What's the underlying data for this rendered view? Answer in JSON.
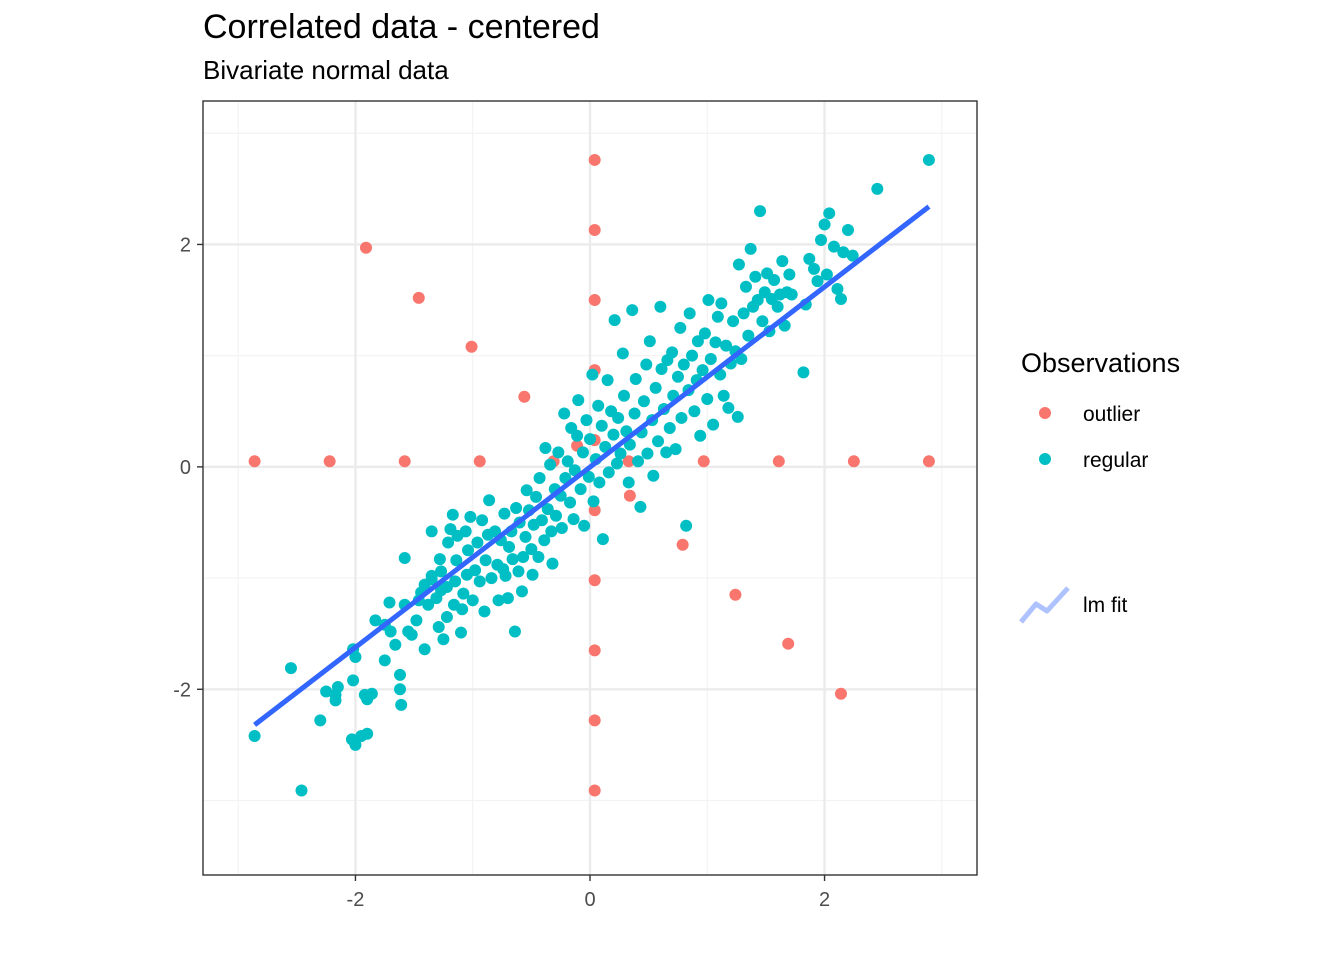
{
  "colors": {
    "outlier": "#F8766D",
    "regular": "#00BFC4",
    "fit": "#3366FF",
    "grid_major": "#EBEBEB",
    "grid_minor": "#F3F3F3",
    "panel_border": "#333333",
    "axis_text": "#4D4D4D"
  },
  "chart_data": {
    "type": "scatter",
    "title": "Correlated data - centered",
    "subtitle": "Bivariate normal data",
    "xlabel": "",
    "ylabel": "",
    "xlim": [
      -3.3,
      3.3
    ],
    "ylim": [
      -3.67,
      3.29
    ],
    "x_ticks": [
      -2,
      0,
      2
    ],
    "x_tick_labels": [
      "-2",
      "0",
      "2"
    ],
    "y_ticks": [
      -2,
      0,
      2
    ],
    "y_tick_labels": [
      "-2",
      "0",
      "2"
    ],
    "grid": true,
    "legend_placement": "right",
    "legend": {
      "title": "Observations",
      "items": [
        {
          "key": "outlier",
          "label": "outlier"
        },
        {
          "key": "regular",
          "label": "regular"
        }
      ],
      "fit_label": "lm fit"
    },
    "series": [
      {
        "name": "outlier",
        "color_key": "outlier",
        "points": [
          [
            0.04,
            2.76
          ],
          [
            0.04,
            2.13
          ],
          [
            0.04,
            1.5
          ],
          [
            0.04,
            0.87
          ],
          [
            0.04,
            0.24
          ],
          [
            0.04,
            -0.39
          ],
          [
            0.04,
            -1.02
          ],
          [
            0.04,
            -1.65
          ],
          [
            0.04,
            -2.28
          ],
          [
            0.04,
            -2.91
          ],
          [
            -2.86,
            0.05
          ],
          [
            -2.22,
            0.05
          ],
          [
            -1.58,
            0.05
          ],
          [
            -0.94,
            0.05
          ],
          [
            -0.31,
            0.05
          ],
          [
            0.33,
            0.05
          ],
          [
            0.97,
            0.05
          ],
          [
            1.61,
            0.05
          ],
          [
            2.25,
            0.05
          ],
          [
            2.89,
            0.05
          ],
          [
            -1.91,
            1.97
          ],
          [
            -1.46,
            1.52
          ],
          [
            -1.01,
            1.08
          ],
          [
            -0.56,
            0.63
          ],
          [
            -0.11,
            0.19
          ],
          [
            0.34,
            -0.26
          ],
          [
            0.79,
            -0.7
          ],
          [
            1.24,
            -1.15
          ],
          [
            1.69,
            -1.59
          ],
          [
            2.14,
            -2.04
          ]
        ]
      },
      {
        "name": "regular",
        "color_key": "regular",
        "points": [
          [
            -2.86,
            -2.42
          ],
          [
            -2.55,
            -1.81
          ],
          [
            -2.46,
            -2.91
          ],
          [
            -2.3,
            -2.28
          ],
          [
            -2.25,
            -2.02
          ],
          [
            -2.17,
            -2.05
          ],
          [
            -2.15,
            -1.98
          ],
          [
            -2.17,
            -2.1
          ],
          [
            -2.02,
            -1.64
          ],
          [
            -2.0,
            -1.71
          ],
          [
            -2.02,
            -1.92
          ],
          [
            -2.03,
            -2.45
          ],
          [
            -2.0,
            -2.5
          ],
          [
            -1.95,
            -2.42
          ],
          [
            -1.9,
            -2.4
          ],
          [
            -1.92,
            -2.05
          ],
          [
            -1.9,
            -2.09
          ],
          [
            -1.86,
            -2.04
          ],
          [
            -1.83,
            -1.38
          ],
          [
            -1.75,
            -1.74
          ],
          [
            -1.75,
            -1.42
          ],
          [
            -1.71,
            -1.22
          ],
          [
            -1.7,
            -1.48
          ],
          [
            -1.66,
            -1.6
          ],
          [
            -1.62,
            -1.87
          ],
          [
            -1.61,
            -2.14
          ],
          [
            -1.62,
            -2.0
          ],
          [
            -1.58,
            -1.24
          ],
          [
            -1.58,
            -0.82
          ],
          [
            -1.55,
            -1.48
          ],
          [
            -1.52,
            -1.51
          ],
          [
            -1.48,
            -1.38
          ],
          [
            -1.46,
            -1.2
          ],
          [
            -1.44,
            -1.13
          ],
          [
            -1.41,
            -1.06
          ],
          [
            -1.41,
            -1.64
          ],
          [
            -1.38,
            -1.24
          ],
          [
            -1.35,
            -1.01
          ],
          [
            -1.35,
            -0.58
          ],
          [
            -1.35,
            -0.98
          ],
          [
            -1.31,
            -1.18
          ],
          [
            -1.29,
            -1.44
          ],
          [
            -1.27,
            -1.11
          ],
          [
            -1.28,
            -0.83
          ],
          [
            -1.27,
            -0.94
          ],
          [
            -1.25,
            -1.55
          ],
          [
            -1.22,
            -1.35
          ],
          [
            -1.22,
            -1.08
          ],
          [
            -1.21,
            -0.68
          ],
          [
            -1.19,
            -0.56
          ],
          [
            -1.17,
            -0.43
          ],
          [
            -1.16,
            -1.24
          ],
          [
            -1.15,
            -1.03
          ],
          [
            -1.14,
            -0.84
          ],
          [
            -1.13,
            -0.62
          ],
          [
            -1.1,
            -1.49
          ],
          [
            -1.09,
            -1.28
          ],
          [
            -1.08,
            -1.14
          ],
          [
            -1.06,
            -0.58
          ],
          [
            -1.05,
            -0.97
          ],
          [
            -1.04,
            -0.75
          ],
          [
            -1.02,
            -0.45
          ],
          [
            -1.0,
            -1.2
          ],
          [
            -0.98,
            -0.93
          ],
          [
            -0.96,
            -0.68
          ],
          [
            -0.94,
            -1.03
          ],
          [
            -0.92,
            -0.48
          ],
          [
            -0.9,
            -1.3
          ],
          [
            -0.89,
            -0.84
          ],
          [
            -0.87,
            -0.61
          ],
          [
            -0.86,
            -0.3
          ],
          [
            -0.84,
            -1.0
          ],
          [
            -0.81,
            -0.58
          ],
          [
            -0.79,
            -0.88
          ],
          [
            -0.78,
            -1.2
          ],
          [
            -0.76,
            -0.66
          ],
          [
            -0.74,
            -0.92
          ],
          [
            -0.73,
            -0.42
          ],
          [
            -0.72,
            -0.98
          ],
          [
            -0.7,
            -1.18
          ],
          [
            -0.69,
            -0.72
          ],
          [
            -0.67,
            -0.58
          ],
          [
            -0.66,
            -0.83
          ],
          [
            -0.64,
            -1.48
          ],
          [
            -0.63,
            -0.37
          ],
          [
            -0.61,
            -0.94
          ],
          [
            -0.6,
            -0.5
          ],
          [
            -0.58,
            -1.12
          ],
          [
            -0.57,
            -0.81
          ],
          [
            -0.55,
            -0.63
          ],
          [
            -0.54,
            -0.21
          ],
          [
            -0.52,
            -0.39
          ],
          [
            -0.5,
            -0.74
          ],
          [
            -0.49,
            -0.97
          ],
          [
            -0.48,
            -0.52
          ],
          [
            -0.46,
            -0.27
          ],
          [
            -0.44,
            -0.81
          ],
          [
            -0.43,
            -0.1
          ],
          [
            -0.41,
            -0.48
          ],
          [
            -0.39,
            -0.66
          ],
          [
            -0.38,
            0.17
          ],
          [
            -0.36,
            -0.38
          ],
          [
            -0.34,
            0.02
          ],
          [
            -0.33,
            -0.58
          ],
          [
            -0.32,
            -0.87
          ],
          [
            -0.3,
            -0.2
          ],
          [
            -0.29,
            -0.44
          ],
          [
            -0.27,
            0.13
          ],
          [
            -0.25,
            -0.26
          ],
          [
            -0.24,
            -0.55
          ],
          [
            -0.22,
            0.48
          ],
          [
            -0.21,
            -0.1
          ],
          [
            -0.19,
            0.05
          ],
          [
            -0.17,
            -0.32
          ],
          [
            -0.16,
            0.35
          ],
          [
            -0.14,
            -0.47
          ],
          [
            -0.13,
            -0.03
          ],
          [
            -0.11,
            0.28
          ],
          [
            -0.1,
            0.6
          ],
          [
            -0.08,
            -0.2
          ],
          [
            -0.06,
            0.13
          ],
          [
            -0.05,
            -0.53
          ],
          [
            -0.03,
            0.42
          ],
          [
            -0.01,
            -0.09
          ],
          [
            0.0,
            0.25
          ],
          [
            0.02,
            0.83
          ],
          [
            0.03,
            -0.31
          ],
          [
            0.05,
            0.07
          ],
          [
            0.07,
            0.55
          ],
          [
            0.08,
            -0.14
          ],
          [
            0.1,
            0.37
          ],
          [
            0.11,
            -0.65
          ],
          [
            0.13,
            0.18
          ],
          [
            0.15,
            0.78
          ],
          [
            0.16,
            -0.05
          ],
          [
            0.18,
            0.5
          ],
          [
            0.2,
            0.29
          ],
          [
            0.21,
            1.32
          ],
          [
            0.23,
            0.03
          ],
          [
            0.24,
            0.44
          ],
          [
            0.26,
            0.12
          ],
          [
            0.28,
            1.02
          ],
          [
            0.29,
            0.64
          ],
          [
            0.31,
            0.32
          ],
          [
            0.33,
            -0.14
          ],
          [
            0.34,
            0.2
          ],
          [
            0.36,
            1.41
          ],
          [
            0.38,
            0.48
          ],
          [
            0.39,
            0.79
          ],
          [
            0.41,
            0.05
          ],
          [
            0.43,
            -0.36
          ],
          [
            0.44,
            0.31
          ],
          [
            0.46,
            0.59
          ],
          [
            0.48,
            0.92
          ],
          [
            0.49,
            0.12
          ],
          [
            0.51,
            1.13
          ],
          [
            0.53,
            0.42
          ],
          [
            0.54,
            -0.08
          ],
          [
            0.56,
            0.71
          ],
          [
            0.58,
            0.23
          ],
          [
            0.6,
            1.44
          ],
          [
            0.61,
            0.88
          ],
          [
            0.63,
            0.52
          ],
          [
            0.65,
            0.13
          ],
          [
            0.66,
            0.96
          ],
          [
            0.68,
            0.35
          ],
          [
            0.7,
            1.03
          ],
          [
            0.71,
            0.64
          ],
          [
            0.73,
            0.16
          ],
          [
            0.75,
            0.81
          ],
          [
            0.77,
            1.25
          ],
          [
            0.78,
            0.44
          ],
          [
            0.8,
            0.92
          ],
          [
            0.82,
            -0.53
          ],
          [
            0.84,
            0.69
          ],
          [
            0.85,
            1.38
          ],
          [
            0.87,
            1.0
          ],
          [
            0.89,
            0.5
          ],
          [
            0.91,
            0.78
          ],
          [
            0.92,
            1.13
          ],
          [
            0.94,
            0.28
          ],
          [
            0.96,
            0.87
          ],
          [
            0.98,
            1.2
          ],
          [
            1.0,
            0.61
          ],
          [
            1.01,
            1.5
          ],
          [
            1.03,
            0.97
          ],
          [
            1.05,
            0.38
          ],
          [
            1.07,
            1.12
          ],
          [
            1.09,
            1.35
          ],
          [
            1.11,
            0.83
          ],
          [
            1.12,
            1.47
          ],
          [
            1.14,
            0.64
          ],
          [
            1.16,
            1.09
          ],
          [
            1.18,
            0.53
          ],
          [
            1.2,
            0.93
          ],
          [
            1.22,
            1.31
          ],
          [
            1.24,
            1.04
          ],
          [
            1.26,
            0.45
          ],
          [
            1.27,
            1.82
          ],
          [
            1.29,
            0.97
          ],
          [
            1.31,
            1.38
          ],
          [
            1.33,
            1.62
          ],
          [
            1.35,
            1.18
          ],
          [
            1.37,
            1.96
          ],
          [
            1.39,
            1.44
          ],
          [
            1.41,
            1.71
          ],
          [
            1.43,
            1.5
          ],
          [
            1.45,
            2.3
          ],
          [
            1.47,
            1.31
          ],
          [
            1.49,
            1.57
          ],
          [
            1.51,
            1.74
          ],
          [
            1.53,
            1.22
          ],
          [
            1.55,
            1.51
          ],
          [
            1.57,
            1.68
          ],
          [
            1.6,
            1.44
          ],
          [
            1.62,
            1.55
          ],
          [
            1.64,
            1.85
          ],
          [
            1.66,
            1.27
          ],
          [
            1.68,
            1.57
          ],
          [
            1.7,
            1.73
          ],
          [
            1.72,
            1.55
          ],
          [
            1.82,
            0.85
          ],
          [
            1.84,
            1.46
          ],
          [
            1.87,
            1.87
          ],
          [
            1.91,
            1.78
          ],
          [
            1.94,
            1.67
          ],
          [
            1.97,
            2.04
          ],
          [
            2.0,
            2.18
          ],
          [
            2.02,
            1.73
          ],
          [
            2.04,
            2.28
          ],
          [
            2.08,
            1.98
          ],
          [
            2.11,
            1.6
          ],
          [
            2.14,
            1.51
          ],
          [
            2.16,
            1.93
          ],
          [
            2.2,
            2.13
          ],
          [
            2.24,
            1.9
          ],
          [
            2.45,
            2.5
          ],
          [
            2.89,
            2.76
          ]
        ]
      }
    ],
    "fit_line": {
      "name": "lm fit",
      "x": [
        -2.86,
        2.89
      ],
      "y": [
        -2.32,
        2.34
      ]
    }
  }
}
